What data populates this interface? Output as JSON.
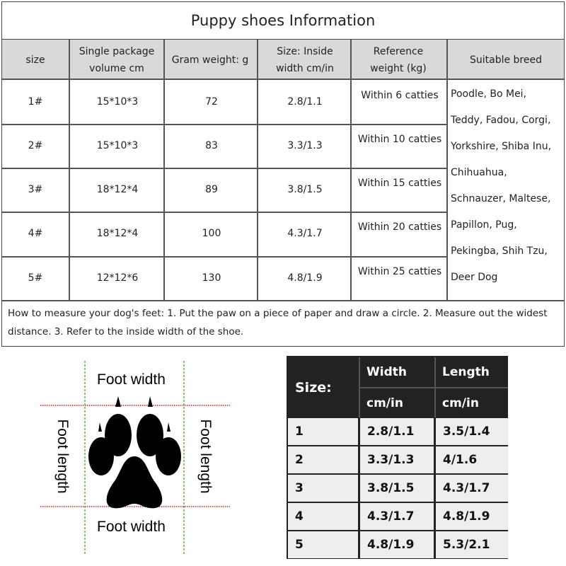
{
  "title": "Puppy shoes Information",
  "headers": [
    "size",
    "Single package volume cm",
    "Gram weight: g",
    "Size: Inside width cm/in",
    "Reference weight (kg)",
    "Suitable breed"
  ],
  "rows": [
    {
      "size": "1#",
      "volume": "15*10*3",
      "gram": "72",
      "width": "2.8/1.1",
      "weight": "Within 6 catties"
    },
    {
      "size": "2#",
      "volume": "15*10*3",
      "gram": "83",
      "width": "3.3/1.3",
      "weight": "Within 10 catties"
    },
    {
      "size": "3#",
      "volume": "18*12*4",
      "gram": "89",
      "width": "3.8/1.5",
      "weight": "Within 15 catties"
    },
    {
      "size": "4#",
      "volume": "18*12*4",
      "gram": "100",
      "width": "4.3/1.7",
      "weight": "Within 20 catties"
    },
    {
      "size": "5#",
      "volume": "12*12*6",
      "gram": "130",
      "width": "4.8/1.9",
      "weight": "Within 25 catties"
    }
  ],
  "breeds": [
    "Poodle, Bo Mei,",
    "Teddy, Fadou, Corgi,",
    "Yorkshire, Shiba Inu,",
    "Chihuahua,",
    "Schnauzer, Maltese,",
    "Papillon, Pug,",
    "Pekingba, Shih Tzu,",
    "Deer Dog"
  ],
  "note": "How to measure your dog's feet: 1. Put the paw on a piece of paper and draw a circle. 2. Measure out the widest distance. 3. Refer to the inside width of the shoe.",
  "diagram": {
    "top": "Foot width",
    "bottom": "Foot width",
    "left": "Foot length",
    "right": "Foot length",
    "guide_colors": {
      "vertical": "#6ab04c",
      "horizontal": "#e05555"
    }
  },
  "size_table": {
    "size_label": "Size:",
    "width_label": "Width",
    "length_label": "Length",
    "unit": "cm/in",
    "rows": [
      [
        "1",
        "2.8/1.1",
        "3.5/1.4"
      ],
      [
        "2",
        "3.3/1.3",
        "4/1.6"
      ],
      [
        "3",
        "3.8/1.5",
        "4.3/1.7"
      ],
      [
        "4",
        "4.3/1.7",
        "4.8/1.9"
      ],
      [
        "5",
        "4.8/1.9",
        "5.3/2.1"
      ]
    ]
  }
}
